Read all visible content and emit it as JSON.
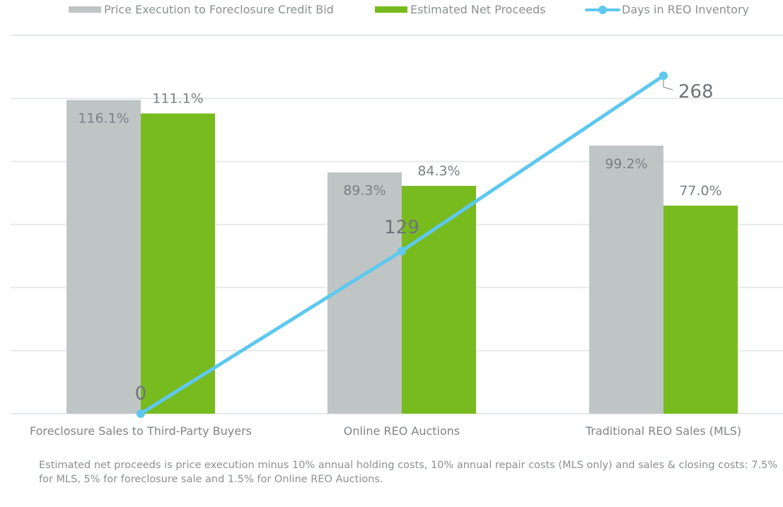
{
  "chart_data": {
    "type": "bar",
    "title": "",
    "xlabel": "",
    "ylabel": "",
    "categories": [
      "Foreclosure Sales to Third-Party Buyers",
      "Online REO Auctions",
      "Traditional REO Sales (MLS)"
    ],
    "series": [
      {
        "name": "Price Execution to Foreclosure Credit Bid",
        "kind": "bar",
        "axis": "left",
        "color": "#bfc5c5",
        "values": [
          116.1,
          89.3,
          99.2
        ],
        "labels": [
          "116.1%",
          "89.3%",
          "99.2%"
        ]
      },
      {
        "name": "Estimated Net Proceeds",
        "kind": "bar",
        "axis": "left",
        "color": "#77bb1f",
        "values": [
          111.1,
          84.3,
          77.0
        ],
        "labels": [
          "111.1%",
          "84.3%",
          "77.0%"
        ]
      },
      {
        "name": "Days in REO Inventory",
        "kind": "line",
        "axis": "right",
        "color": "#5ec8ee",
        "values": [
          0,
          129,
          268
        ],
        "labels": [
          "0",
          "129",
          "268"
        ]
      }
    ],
    "ylim_left": [
      0,
      140
    ],
    "ylim_right": [
      0,
      300
    ],
    "gridlines": 6,
    "grid": true,
    "legend_position": "top",
    "axis_labels_visible": false
  },
  "footnote": "Estimated net proceeds is price execution minus 10% annual holding costs, 10% annual repair  costs (MLS only) and sales & closing costs: 7.5% for MLS, 5% for foreclosure sale and 1.5% for Online REO Auctions.",
  "colors": {
    "grid": "#e6e9ec",
    "text": "#7f8589",
    "value_text": "#7a8085"
  }
}
